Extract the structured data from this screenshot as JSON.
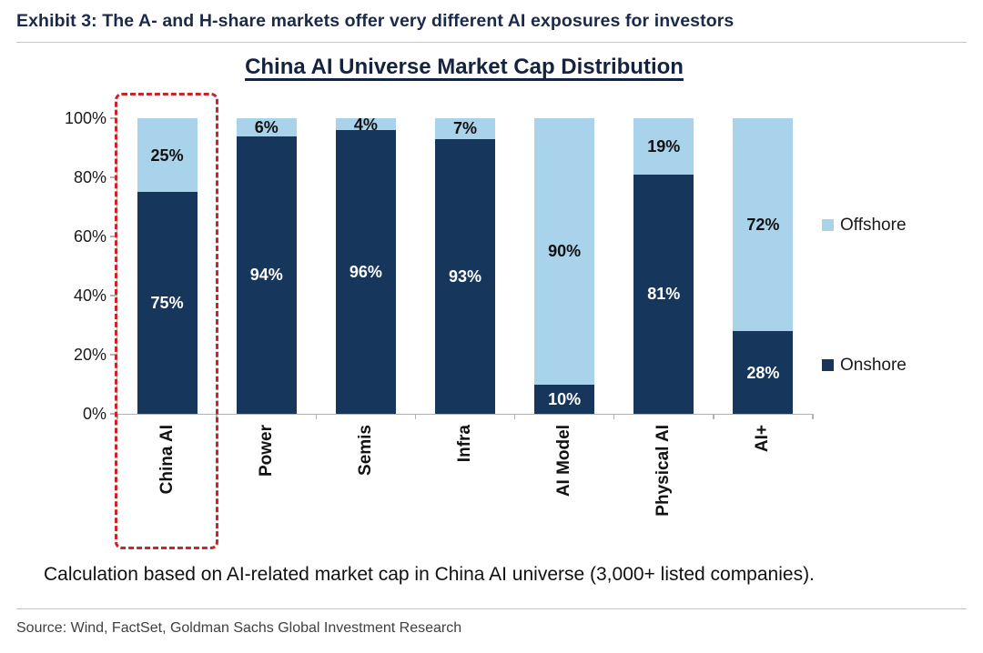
{
  "header": {
    "title": "Exhibit 3: The A- and H-share markets offer very different AI exposures for investors"
  },
  "chart_data": {
    "type": "bar",
    "stacked": true,
    "title": "China AI Universe Market Cap Distribution",
    "categories": [
      "China AI",
      "Power",
      "Semis",
      "Infra",
      "AI Model",
      "Physical AI",
      "AI+"
    ],
    "series": [
      {
        "name": "Onshore",
        "color": "#16365C",
        "values": [
          75,
          94,
          96,
          93,
          10,
          81,
          28
        ]
      },
      {
        "name": "Offshore",
        "color": "#A9D2EB",
        "values": [
          25,
          6,
          4,
          7,
          90,
          19,
          72
        ]
      }
    ],
    "unit": "%",
    "ylim": [
      0,
      100
    ],
    "y_ticks": [
      "0%",
      "20%",
      "40%",
      "60%",
      "80%",
      "100%"
    ],
    "grid": "off",
    "legend_position": "right",
    "highlight": {
      "category": "China AI",
      "style": "dashed-box",
      "color": "#C8262C"
    }
  },
  "footnote": "Calculation based on AI-related market cap in China AI universe (3,000+ listed companies).",
  "source": "Source: Wind, FactSet, Goldman Sachs Global Investment Research"
}
